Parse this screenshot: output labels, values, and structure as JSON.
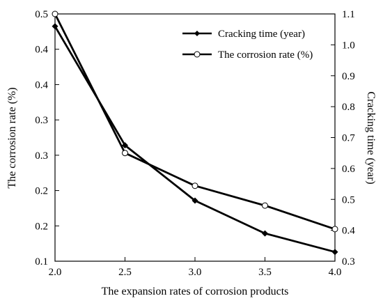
{
  "chart_data": {
    "type": "line",
    "xlabel": "The expansion rates of corrosion products",
    "ylabel_left": "The corrosion rate (%)",
    "ylabel_right": "Cracking time (year)",
    "xlim": [
      2.0,
      4.0
    ],
    "ylim_left": [
      0.1,
      0.5
    ],
    "ylim_right": [
      0.3,
      1.1
    ],
    "x_ticks": [
      "2.0",
      "2.5",
      "3.0",
      "3.5",
      "4.0"
    ],
    "y_left_ticks": [
      "0.1",
      "0.2",
      "0.2",
      "0.3",
      "0.3",
      "0.4",
      "0.4",
      "0.5"
    ],
    "y_right_ticks": [
      "0.3",
      "0.4",
      "0.5",
      "0.6",
      "0.7",
      "0.8",
      "0.9",
      "1.0",
      "1.1"
    ],
    "grid": false,
    "legend_position": "top-right",
    "series": [
      {
        "name": "Cracking time (year)",
        "axis": "right",
        "marker": "diamond-filled",
        "color": "#000000",
        "x": [
          2.0,
          2.5,
          3.0,
          3.5,
          4.0
        ],
        "values": [
          1.06,
          0.675,
          0.496,
          0.39,
          0.33
        ]
      },
      {
        "name": "The corrosion rate (%)",
        "axis": "left",
        "marker": "circle-open",
        "color": "#000000",
        "x": [
          2.0,
          2.5,
          3.0,
          3.5,
          4.0
        ],
        "values": [
          0.5,
          0.275,
          0.222,
          0.19,
          0.152
        ]
      }
    ]
  }
}
